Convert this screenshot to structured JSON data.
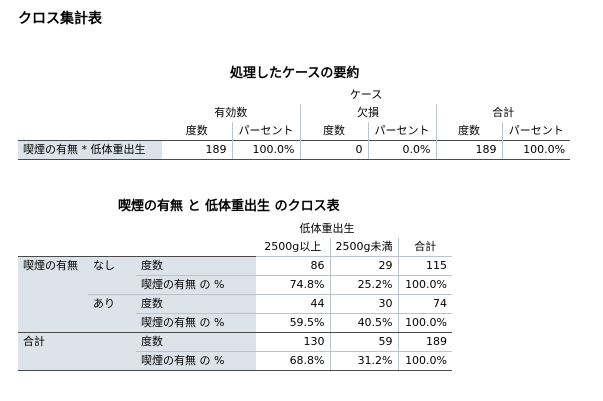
{
  "page": {
    "title": "クロス集計表"
  },
  "summary": {
    "title": "処理したケースの要約",
    "cases_label": "ケース",
    "groups": [
      "有効数",
      "欠損",
      "合計"
    ],
    "subheaders": [
      "度数",
      "パーセント",
      "度数",
      "パーセント",
      "度数",
      "パーセント"
    ],
    "row": {
      "label": "喫煙の有無 * 低体重出生",
      "values": [
        "189",
        "100.0%",
        "0",
        "0.0%",
        "189",
        "100.0%"
      ]
    }
  },
  "crosstab": {
    "title": "喫煙の有無 と 低体重出生 のクロス表",
    "col_var": "低体重出生",
    "col_cats": [
      "2500g以上",
      "2500g未満"
    ],
    "total_label": "合計",
    "row_var": "喫煙の有無",
    "groups": [
      {
        "label": "なし",
        "rows": [
          {
            "stat": "度数",
            "values": [
              "86",
              "29",
              "115"
            ]
          },
          {
            "stat": "喫煙の有無 の %",
            "values": [
              "74.8%",
              "25.2%",
              "100.0%"
            ]
          }
        ]
      },
      {
        "label": "あり",
        "rows": [
          {
            "stat": "度数",
            "values": [
              "44",
              "30",
              "74"
            ]
          },
          {
            "stat": "喫煙の有無 の %",
            "values": [
              "59.5%",
              "40.5%",
              "100.0%"
            ]
          }
        ]
      }
    ],
    "total": {
      "label": "合計",
      "rows": [
        {
          "stat": "度数",
          "values": [
            "130",
            "59",
            "189"
          ]
        },
        {
          "stat": "喫煙の有無 の %",
          "values": [
            "68.8%",
            "31.2%",
            "100.0%"
          ]
        }
      ]
    }
  }
}
